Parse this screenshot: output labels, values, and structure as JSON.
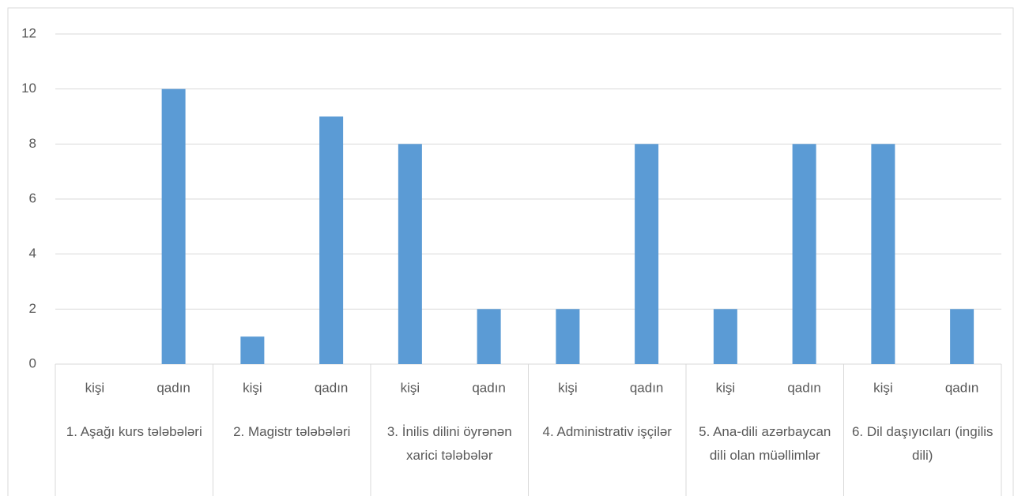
{
  "chart_data": {
    "type": "bar",
    "categories": [
      "kişi",
      "qadın",
      "kişi",
      "qadın",
      "kişi",
      "qadın",
      "kişi",
      "qadın",
      "kişi",
      "qadın",
      "kişi",
      "qadın"
    ],
    "groups": [
      "1. Aşağı kurs tələbələri",
      "2. Magistr tələbələri",
      "3. İnilis dilini öyrənən xarici tələbələr",
      "4. Administrativ işçilər",
      "5. Ana-dili azərbaycan dili olan müəllimlər",
      "6. Dil daşıyıcıları (ingilis dili)"
    ],
    "values": [
      0,
      10,
      1,
      9,
      8,
      2,
      2,
      8,
      2,
      8,
      8,
      2
    ],
    "color": "#5b9bd5",
    "ylim": [
      0,
      12
    ],
    "yticks": [
      0,
      2,
      4,
      6,
      8,
      10,
      12
    ],
    "grid": true
  }
}
